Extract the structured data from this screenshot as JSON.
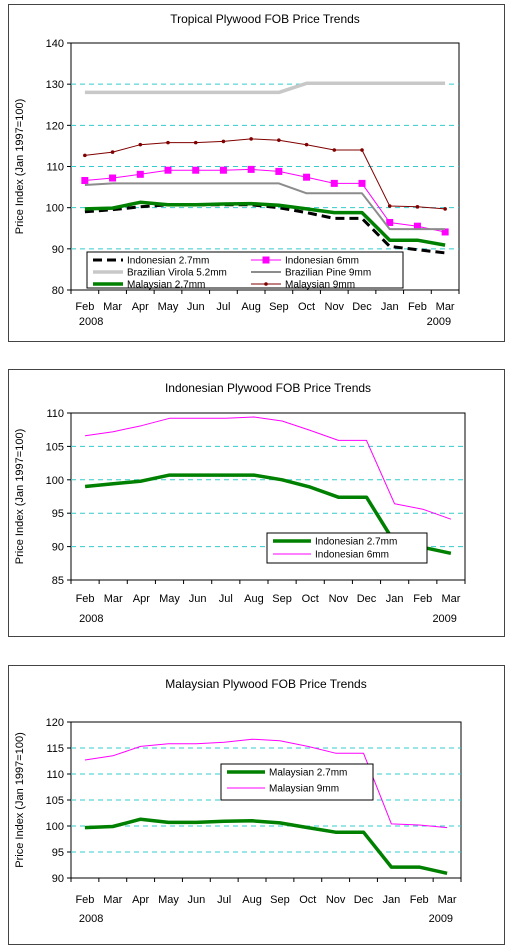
{
  "chart_data": [
    {
      "type": "line",
      "title": "Tropical Plywood FOB Price Trends",
      "ylabel": "Price Index (Jan 1997=100)",
      "ylim": [
        80,
        140
      ],
      "yticks": [
        80,
        90,
        100,
        110,
        120,
        130,
        140
      ],
      "categories": [
        "Feb",
        "Mar",
        "Apr",
        "May",
        "Jun",
        "Jul",
        "Aug",
        "Sep",
        "Oct",
        "Nov",
        "Dec",
        "Jan",
        "Feb",
        "Mar"
      ],
      "year_labels": [
        "2008",
        "2009"
      ],
      "grid": true,
      "legend_position": "bottom-inside",
      "series": [
        {
          "name": "Indonesian 2.7mm",
          "color": "#000000",
          "style": "dashed",
          "values": [
            99,
            99.5,
            100.2,
            100.7,
            100.7,
            100.7,
            100.7,
            100,
            98.8,
            97.4,
            97.4,
            90.6,
            89.8,
            89
          ]
        },
        {
          "name": "Indonesian 6mm",
          "color": "#ff00ff",
          "style": "square-markers",
          "values": [
            106.6,
            107.2,
            108.1,
            109.1,
            109.1,
            109.1,
            109.3,
            108.8,
            107.4,
            105.9,
            105.9,
            96.4,
            95.5,
            94.1
          ]
        },
        {
          "name": "Brazilian Virola 5.2mm",
          "color": "#c8c8c8",
          "style": "thick",
          "values": [
            128,
            128,
            128,
            128,
            128,
            128,
            128,
            128,
            130.2,
            130.2,
            130.2,
            130.2,
            130.2,
            130.2
          ]
        },
        {
          "name": "Brazilian Pine 9mm",
          "color": "#8c8c8c",
          "style": "solid",
          "values": [
            105.5,
            105.9,
            105.9,
            105.9,
            105.9,
            105.9,
            105.9,
            105.9,
            103.5,
            103.5,
            103.5,
            94.8,
            94.8,
            94.8
          ]
        },
        {
          "name": "Malaysian 2.7mm",
          "color": "#008000",
          "style": "thick",
          "values": [
            99.7,
            99.9,
            101.3,
            100.7,
            100.7,
            100.9,
            101,
            100.6,
            99.7,
            98.8,
            98.8,
            92.1,
            92.1,
            90.9
          ]
        },
        {
          "name": "Malaysian 9mm",
          "color": "#800000",
          "style": "dot-markers",
          "values": [
            112.7,
            113.5,
            115.3,
            115.8,
            115.8,
            116.1,
            116.7,
            116.4,
            115.3,
            114,
            114,
            100.4,
            100.2,
            99.7
          ]
        }
      ]
    },
    {
      "type": "line",
      "title": "Indonesian Plywood FOB Price Trends",
      "ylabel": "Price Index (Jan 1997=100)",
      "ylim": [
        85,
        110
      ],
      "yticks": [
        85,
        90,
        95,
        100,
        105,
        110
      ],
      "categories": [
        "Feb",
        "Mar",
        "Apr",
        "May",
        "Jun",
        "Jul",
        "Aug",
        "Sep",
        "Oct",
        "Nov",
        "Dec",
        "Jan",
        "Feb",
        "Mar"
      ],
      "year_labels": [
        "2008",
        "2009"
      ],
      "grid": true,
      "legend_position": "bottom-right-inside",
      "series": [
        {
          "name": "Indonesian 2.7mm",
          "color": "#008000",
          "style": "thick",
          "values": [
            99,
            99.4,
            99.8,
            100.7,
            100.7,
            100.7,
            100.7,
            100,
            98.9,
            97.4,
            97.4,
            90.6,
            89.9,
            89
          ]
        },
        {
          "name": "Indonesian 6mm",
          "color": "#ff00ff",
          "style": "thin",
          "values": [
            106.6,
            107.2,
            108.1,
            109.2,
            109.2,
            109.2,
            109.4,
            108.8,
            107.4,
            105.9,
            105.9,
            96.4,
            95.6,
            94.1
          ]
        }
      ]
    },
    {
      "type": "line",
      "title": "Malaysian Plywood FOB Price Trends",
      "ylabel": "Price Index (Jan 1997=100)",
      "ylim": [
        90,
        120
      ],
      "yticks": [
        90,
        95,
        100,
        105,
        110,
        115,
        120
      ],
      "categories": [
        "Feb",
        "Mar",
        "Apr",
        "May",
        "Jun",
        "Jul",
        "Aug",
        "Sep",
        "Oct",
        "Nov",
        "Dec",
        "Jan",
        "Feb",
        "Mar"
      ],
      "year_labels": [
        "2008",
        "2009"
      ],
      "grid": true,
      "legend_position": "center-inside",
      "series": [
        {
          "name": "Malaysian 2.7mm",
          "color": "#008000",
          "style": "thick",
          "values": [
            99.7,
            99.9,
            101.3,
            100.7,
            100.7,
            100.9,
            101,
            100.6,
            99.7,
            98.8,
            98.8,
            92.1,
            92.1,
            90.9
          ]
        },
        {
          "name": "Malaysian 9mm",
          "color": "#ff00ff",
          "style": "thin",
          "values": [
            112.7,
            113.5,
            115.3,
            115.8,
            115.8,
            116.1,
            116.7,
            116.4,
            115.3,
            114,
            114,
            100.4,
            100.2,
            99.7
          ]
        }
      ]
    }
  ]
}
